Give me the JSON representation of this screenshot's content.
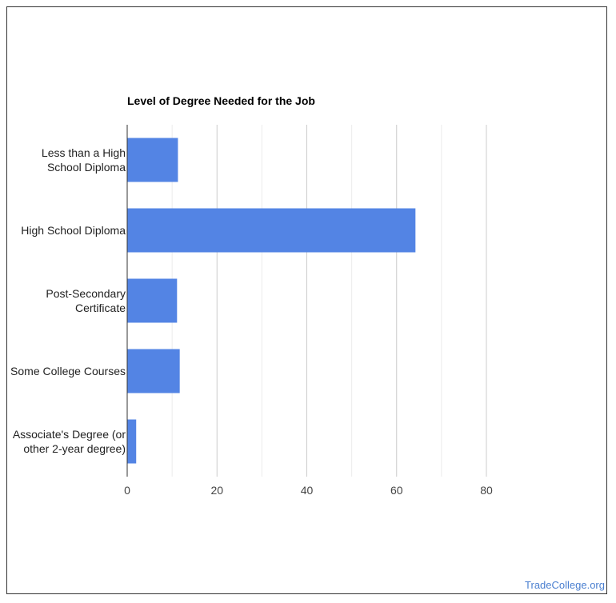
{
  "chart_data": {
    "type": "bar",
    "orientation": "horizontal",
    "title": "Level of Degree Needed for the Job",
    "categories": [
      "Less than a High\nSchool Diploma",
      "High School Diploma",
      "Post-Secondary\nCertificate",
      "Some College Courses",
      "Associate's Degree (or\nother 2-year degree)"
    ],
    "values": [
      11.3,
      64.2,
      11.1,
      11.7,
      2.0
    ],
    "xlim": [
      0,
      80
    ],
    "xticks": [
      "0",
      "20",
      "40",
      "60",
      "80"
    ],
    "xtick_values": [
      0,
      20,
      40,
      60,
      80
    ],
    "minor_gridlines": [
      10,
      30,
      50,
      70
    ],
    "grid": true,
    "bar_color": "#5384e4",
    "gridline_color": "#cccccc",
    "xlabel": "",
    "ylabel": ""
  },
  "footer": {
    "source": "TradeCollege.org",
    "link_color": "#4a7fd0"
  }
}
